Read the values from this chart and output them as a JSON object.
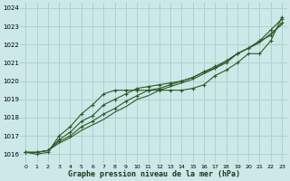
{
  "xlabel": "Graphe pression niveau de la mer (hPa)",
  "xlim": [
    -0.5,
    23.5
  ],
  "ylim": [
    1015.5,
    1024.3
  ],
  "yticks": [
    1016,
    1017,
    1018,
    1019,
    1020,
    1021,
    1022,
    1023,
    1024
  ],
  "xticks": [
    0,
    1,
    2,
    3,
    4,
    5,
    6,
    7,
    8,
    9,
    10,
    11,
    12,
    13,
    14,
    15,
    16,
    17,
    18,
    19,
    20,
    21,
    22,
    23
  ],
  "background_color": "#cce8e8",
  "grid_color": "#aad4cc",
  "line_color": "#2d5a27",
  "series": [
    [
      1016.1,
      1016.0,
      1016.1,
      1017.0,
      1017.5,
      1018.2,
      1018.7,
      1019.3,
      1019.5,
      1019.5,
      1019.5,
      1019.5,
      1019.5,
      1019.5,
      1019.5,
      1019.6,
      1019.8,
      1020.3,
      1020.6,
      1021.0,
      1021.5,
      1021.5,
      1022.2,
      1023.5
    ],
    [
      1016.1,
      1016.1,
      1016.2,
      1016.8,
      1017.2,
      1017.8,
      1018.1,
      1018.7,
      1019.0,
      1019.3,
      1019.6,
      1019.7,
      1019.8,
      1019.9,
      1020.0,
      1020.2,
      1020.5,
      1020.7,
      1021.0,
      1021.5,
      1021.8,
      1022.2,
      1022.5,
      1023.2
    ],
    [
      1016.1,
      1016.1,
      1016.2,
      1016.7,
      1017.0,
      1017.5,
      1017.8,
      1018.2,
      1018.5,
      1018.9,
      1019.2,
      1019.5,
      1019.6,
      1019.8,
      1020.0,
      1020.2,
      1020.5,
      1020.8,
      1021.1,
      1021.5,
      1021.8,
      1022.2,
      1022.8,
      1023.4
    ],
    [
      1016.1,
      1016.1,
      1016.2,
      1016.6,
      1016.9,
      1017.3,
      1017.6,
      1017.9,
      1018.3,
      1018.6,
      1019.0,
      1019.2,
      1019.5,
      1019.7,
      1019.9,
      1020.1,
      1020.4,
      1020.7,
      1021.1,
      1021.5,
      1021.8,
      1022.1,
      1022.6,
      1023.1
    ]
  ],
  "marker_series": [
    0,
    1,
    2,
    3
  ],
  "has_marker": [
    true,
    true,
    true,
    false
  ]
}
